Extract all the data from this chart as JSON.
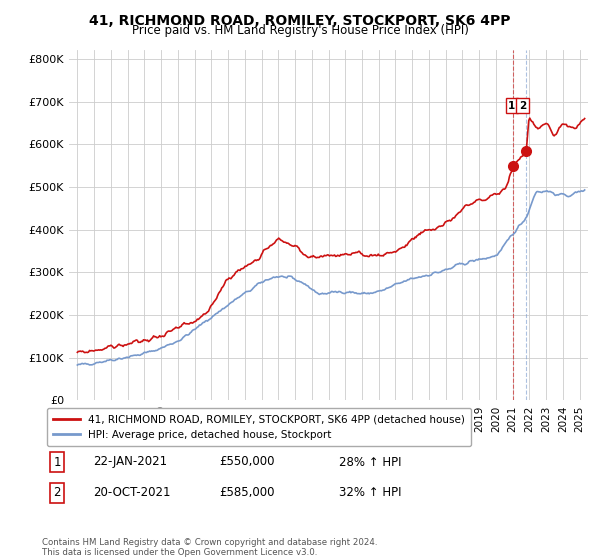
{
  "title": "41, RICHMOND ROAD, ROMILEY, STOCKPORT, SK6 4PP",
  "subtitle": "Price paid vs. HM Land Registry's House Price Index (HPI)",
  "ylabel_ticks": [
    "£0",
    "£100K",
    "£200K",
    "£300K",
    "£400K",
    "£500K",
    "£600K",
    "£700K",
    "£800K"
  ],
  "ytick_vals": [
    0,
    100000,
    200000,
    300000,
    400000,
    500000,
    600000,
    700000,
    800000
  ],
  "ylim": [
    0,
    820000
  ],
  "xlim_start": 1994.5,
  "xlim_end": 2025.5,
  "hpi_color": "#7799cc",
  "property_color": "#cc1111",
  "sale1_x": 2021.05,
  "sale1_y": 550000,
  "sale2_x": 2021.8,
  "sale2_y": 585000,
  "legend_property": "41, RICHMOND ROAD, ROMILEY, STOCKPORT, SK6 4PP (detached house)",
  "legend_hpi": "HPI: Average price, detached house, Stockport",
  "annotation1_num": "1",
  "annotation1_date": "22-JAN-2021",
  "annotation1_price": "£550,000",
  "annotation1_hpi": "28% ↑ HPI",
  "annotation2_num": "2",
  "annotation2_date": "20-OCT-2021",
  "annotation2_price": "£585,000",
  "annotation2_hpi": "32% ↑ HPI",
  "footnote": "Contains HM Land Registry data © Crown copyright and database right 2024.\nThis data is licensed under the Open Government Licence v3.0.",
  "bg_color": "#ffffff",
  "grid_color": "#cccccc"
}
